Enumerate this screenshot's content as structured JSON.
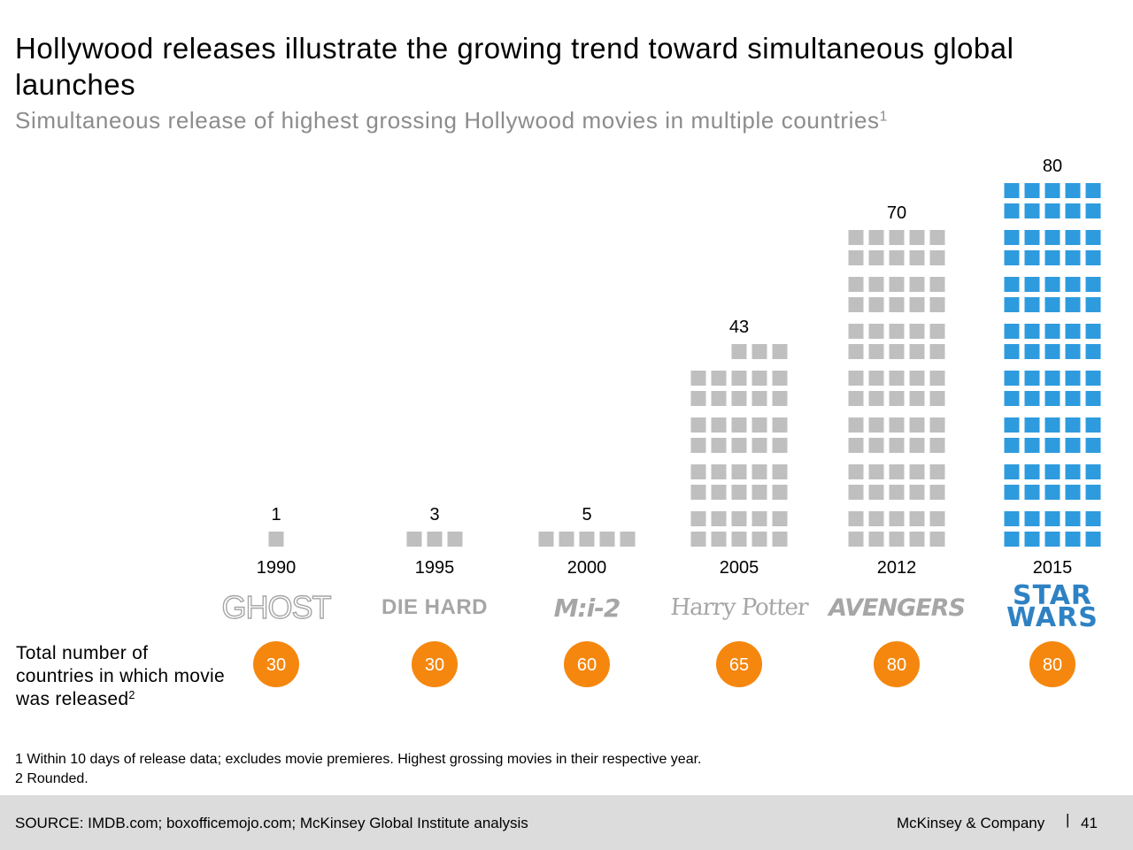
{
  "header": {
    "title": "Hollywood releases illustrate the growing trend toward simultaneous global launches",
    "subtitle": "Simultaneous release of highest grossing Hollywood movies in multiple countries",
    "subtitle_footnote": "1"
  },
  "chart_data": {
    "type": "pictogram-bar",
    "title": "Simultaneous release of highest grossing Hollywood movies in multiple countries",
    "categories": [
      "1990",
      "1995",
      "2000",
      "2005",
      "2012",
      "2015"
    ],
    "movies": [
      "GHOST",
      "DIE HARD",
      "M:I-2",
      "Harry Potter",
      "AVENGERS",
      "STAR WARS"
    ],
    "series": [
      {
        "values": [
          1,
          3,
          5,
          43,
          70,
          80
        ]
      }
    ],
    "countries_released": {
      "label": "Total number of countries in which movie was released",
      "label_footnote": "2",
      "values": [
        30,
        30,
        60,
        65,
        80,
        80
      ]
    },
    "colors": {
      "default_square": "#bfbfbf",
      "highlight_square": "#2e9bde",
      "circle": "#f5870f"
    },
    "highlight_category": "2015"
  },
  "logos": {
    "ghost": "GHOST",
    "diehard": "DIE HARD",
    "mi2": "M:i-2",
    "hp": "Harry Potter",
    "avengers": "AVENGERS",
    "starwars_top": "STAR",
    "starwars_bottom": "WARS"
  },
  "footnotes": {
    "note1": "1 Within 10 days of release data; excludes movie premieres. Highest grossing movies in their respective year.",
    "note2": "2 Rounded."
  },
  "footer": {
    "source": "SOURCE: IMDB.com; boxofficemojo.com; McKinsey Global Institute analysis",
    "company": "McKinsey & Company",
    "separator": "|",
    "page_number": "41"
  }
}
